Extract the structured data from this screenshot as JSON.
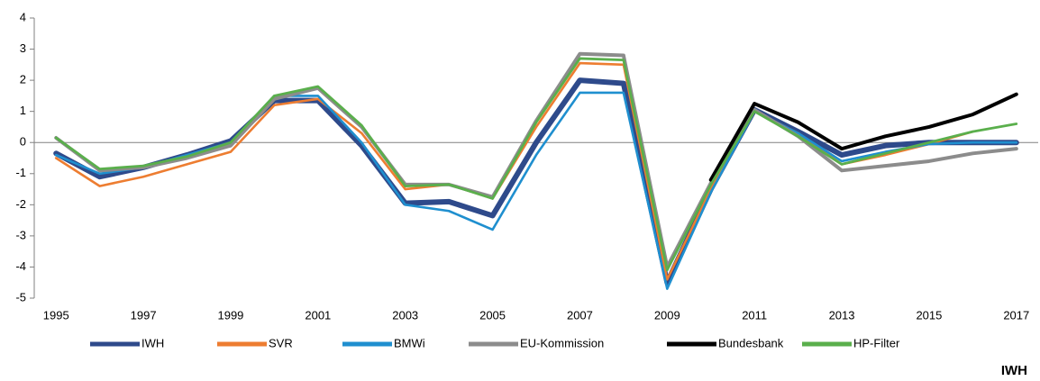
{
  "chart_data": {
    "type": "line",
    "source": "IWH",
    "x": [
      1995,
      1996,
      1997,
      1998,
      1999,
      2000,
      2001,
      2002,
      2003,
      2004,
      2005,
      2006,
      2007,
      2008,
      2009,
      2010,
      2011,
      2012,
      2013,
      2014,
      2015,
      2016,
      2017
    ],
    "xlim": [
      1994.5,
      2017.5
    ],
    "xticks": [
      1995,
      1997,
      1999,
      2001,
      2003,
      2005,
      2007,
      2009,
      2011,
      2013,
      2015,
      2017
    ],
    "ylim": [
      -5,
      4
    ],
    "yticks": [
      -5,
      -4,
      -3,
      -2,
      -1,
      0,
      1,
      2,
      3,
      4
    ],
    "series": [
      {
        "name": "IWH",
        "color": "#2e4a8b",
        "values": [
          -0.35,
          -1.1,
          -0.8,
          -0.4,
          0.05,
          1.35,
          1.35,
          -0.1,
          -1.95,
          -1.9,
          -2.35,
          0.0,
          2.0,
          1.9,
          -4.5,
          -1.5,
          1.05,
          0.35,
          -0.4,
          -0.1,
          0.0,
          0.0,
          0.0
        ]
      },
      {
        "name": "SVR",
        "color": "#ed7d31",
        "values": [
          -0.5,
          -1.4,
          -1.1,
          -0.7,
          -0.3,
          1.2,
          1.4,
          0.3,
          -1.5,
          -1.35,
          -1.8,
          0.5,
          2.55,
          2.5,
          -4.4,
          -1.5,
          1.0,
          0.3,
          -0.7,
          -0.4,
          -0.05,
          0.35,
          null
        ]
      },
      {
        "name": "BMWi",
        "color": "#1f8fcf",
        "values": [
          -0.4,
          -1.0,
          -0.8,
          -0.4,
          0.0,
          1.5,
          1.5,
          0.0,
          -2.0,
          -2.2,
          -2.8,
          -0.4,
          1.6,
          1.6,
          -4.7,
          -1.6,
          1.0,
          0.3,
          -0.6,
          -0.3,
          -0.05,
          0.0,
          0.0
        ]
      },
      {
        "name": "EU-Kommission",
        "color": "#8c8c8c",
        "values": [
          0.15,
          -0.9,
          -0.8,
          -0.5,
          -0.1,
          1.4,
          1.75,
          0.5,
          -1.35,
          -1.35,
          -1.75,
          0.7,
          2.85,
          2.8,
          -4.0,
          -1.3,
          1.05,
          0.2,
          -0.9,
          -0.75,
          -0.6,
          -0.35,
          -0.2
        ]
      },
      {
        "name": "Bundesbank",
        "color": "#000000",
        "values": [
          null,
          null,
          null,
          null,
          null,
          null,
          null,
          null,
          null,
          null,
          null,
          null,
          null,
          null,
          null,
          -1.2,
          1.25,
          0.65,
          -0.2,
          0.2,
          0.5,
          0.9,
          1.55
        ]
      },
      {
        "name": "HP-Filter",
        "color": "#5aaf4c",
        "values": [
          0.15,
          -0.85,
          -0.75,
          -0.45,
          0.0,
          1.5,
          1.8,
          0.55,
          -1.4,
          -1.35,
          -1.8,
          0.65,
          2.7,
          2.65,
          -4.1,
          -1.35,
          1.0,
          0.2,
          -0.7,
          -0.35,
          0.0,
          0.35,
          0.6
        ]
      }
    ]
  }
}
